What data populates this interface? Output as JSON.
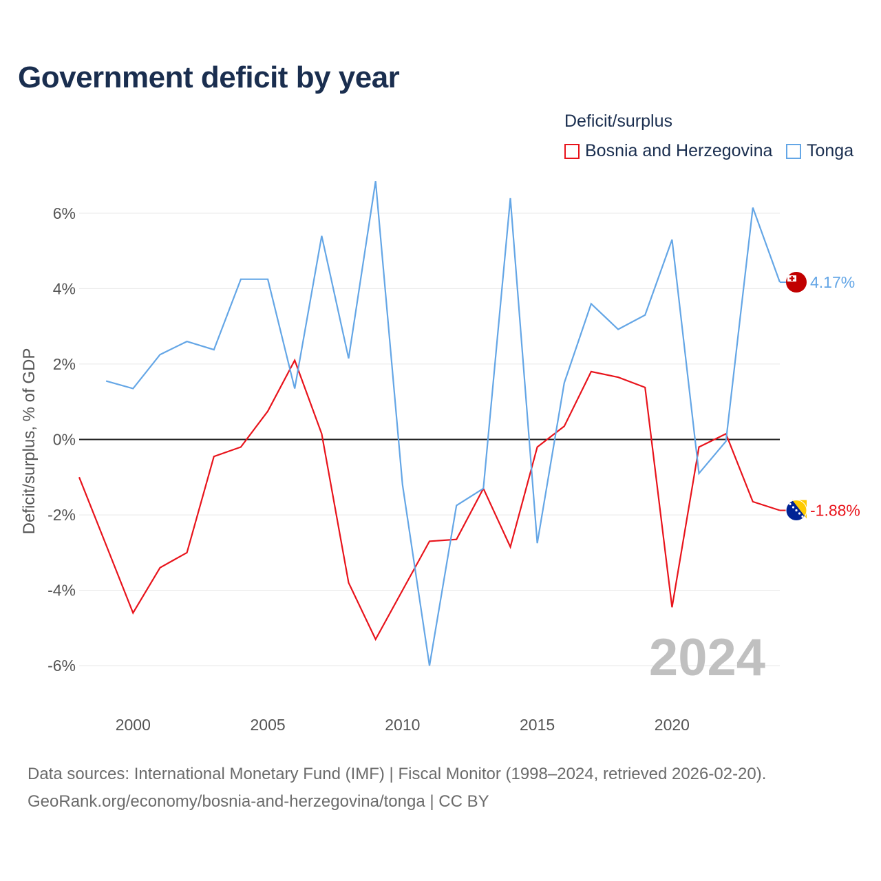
{
  "header": {
    "title": "Government deficit by year"
  },
  "legend": {
    "title": "Deficit/surplus",
    "items": [
      {
        "label": "Bosnia and Herzegovina",
        "color": "#e8131b"
      },
      {
        "label": "Tonga",
        "color": "#64a6e6"
      }
    ]
  },
  "year_badge": "2024",
  "footer": {
    "line1": "Data sources: International Monetary Fund (IMF) | Fiscal Monitor (1998–2024, retrieved 2026-02-20).",
    "line2": "GeoRank.org/economy/bosnia-and-herzegovina/tonga | CC BY"
  },
  "chart_data": {
    "type": "line",
    "title": "Government deficit by year",
    "xlabel": "",
    "ylabel": "Deficit/surplus, % of GDP",
    "xlim": [
      1998,
      2024
    ],
    "ylim": [
      -7,
      7
    ],
    "x_ticks": [
      2000,
      2005,
      2010,
      2015,
      2020
    ],
    "y_ticks": [
      6,
      4,
      2,
      0,
      -2,
      -4,
      -6
    ],
    "y_tick_labels": [
      "6%",
      "4%",
      "2%",
      "0%",
      "-2%",
      "-4%",
      "-6%"
    ],
    "grid": true,
    "series": [
      {
        "name": "Bosnia and Herzegovina",
        "color": "#e8131b",
        "end_label": "-1.88%",
        "flag": "bosnia-flag-icon",
        "x": [
          1998,
          1999,
          2000,
          2001,
          2002,
          2003,
          2004,
          2005,
          2006,
          2007,
          2008,
          2009,
          2010,
          2011,
          2012,
          2013,
          2014,
          2015,
          2016,
          2017,
          2018,
          2019,
          2020,
          2021,
          2022,
          2023,
          2024
        ],
        "values": [
          -1.0,
          -2.8,
          -4.6,
          -3.4,
          -3.0,
          -0.45,
          -0.2,
          0.75,
          2.1,
          0.15,
          -3.8,
          -5.3,
          -4.0,
          -2.7,
          -2.65,
          -1.3,
          -2.85,
          -0.2,
          0.35,
          1.8,
          1.65,
          1.38,
          -4.45,
          -0.2,
          0.15,
          -1.65,
          -1.88
        ]
      },
      {
        "name": "Tonga",
        "color": "#64a6e6",
        "end_label": "4.17%",
        "flag": "tonga-flag-icon",
        "x": [
          1999,
          2000,
          2001,
          2002,
          2003,
          2004,
          2005,
          2006,
          2007,
          2008,
          2009,
          2010,
          2011,
          2012,
          2013,
          2014,
          2015,
          2016,
          2017,
          2018,
          2019,
          2020,
          2021,
          2022,
          2023,
          2024
        ],
        "values": [
          1.55,
          1.35,
          2.25,
          2.6,
          2.38,
          4.25,
          4.25,
          1.35,
          5.4,
          2.15,
          6.85,
          -1.2,
          -6.0,
          -1.75,
          -1.3,
          6.4,
          -2.75,
          1.5,
          3.6,
          2.92,
          3.3,
          5.3,
          -0.9,
          -0.05,
          6.15,
          4.17
        ]
      }
    ]
  }
}
